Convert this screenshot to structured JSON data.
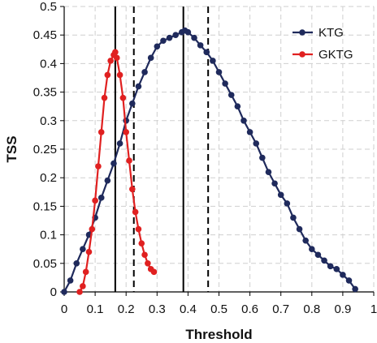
{
  "chart_data": {
    "type": "line",
    "title": "",
    "xlabel": "Threshold",
    "ylabel": "TSS",
    "xlim": [
      0,
      1
    ],
    "ylim": [
      0,
      0.5
    ],
    "xticks": [
      "0",
      "0.1",
      "0.2",
      "0.3",
      "0.4",
      "0.5",
      "0.6",
      "0.7",
      "0.8",
      "0.9",
      "1"
    ],
    "yticks": [
      "0",
      "0.05",
      "0.1",
      "0.15",
      "0.2",
      "0.25",
      "0.3",
      "0.35",
      "0.4",
      "0.45",
      "0.5"
    ],
    "grid": true,
    "legend_position": "top-right",
    "series": [
      {
        "name": "KTG",
        "color": "#1f2a5c",
        "marker": "circle",
        "x": [
          0,
          0.02,
          0.04,
          0.06,
          0.08,
          0.1,
          0.12,
          0.14,
          0.16,
          0.18,
          0.2,
          0.22,
          0.24,
          0.26,
          0.28,
          0.3,
          0.32,
          0.34,
          0.36,
          0.38,
          0.39,
          0.4,
          0.42,
          0.44,
          0.46,
          0.48,
          0.5,
          0.52,
          0.54,
          0.56,
          0.58,
          0.6,
          0.62,
          0.64,
          0.66,
          0.68,
          0.7,
          0.72,
          0.74,
          0.76,
          0.78,
          0.8,
          0.82,
          0.84,
          0.86,
          0.88,
          0.9,
          0.92,
          0.94
        ],
        "y": [
          0,
          0.02,
          0.05,
          0.075,
          0.1,
          0.13,
          0.165,
          0.195,
          0.225,
          0.26,
          0.3,
          0.33,
          0.36,
          0.385,
          0.41,
          0.43,
          0.44,
          0.445,
          0.45,
          0.455,
          0.458,
          0.455,
          0.445,
          0.432,
          0.42,
          0.405,
          0.385,
          0.365,
          0.345,
          0.325,
          0.3,
          0.28,
          0.26,
          0.235,
          0.21,
          0.19,
          0.17,
          0.155,
          0.13,
          0.11,
          0.09,
          0.075,
          0.065,
          0.055,
          0.045,
          0.04,
          0.03,
          0.02,
          0.005
        ]
      },
      {
        "name": "GKTG",
        "color": "#e02020",
        "marker": "circle",
        "x": [
          0.05,
          0.06,
          0.07,
          0.08,
          0.09,
          0.1,
          0.11,
          0.12,
          0.13,
          0.14,
          0.15,
          0.16,
          0.165,
          0.17,
          0.18,
          0.19,
          0.2,
          0.21,
          0.22,
          0.23,
          0.24,
          0.25,
          0.26,
          0.27,
          0.28,
          0.29
        ],
        "y": [
          0.0,
          0.01,
          0.035,
          0.07,
          0.11,
          0.16,
          0.22,
          0.28,
          0.34,
          0.38,
          0.405,
          0.415,
          0.42,
          0.41,
          0.38,
          0.34,
          0.28,
          0.23,
          0.18,
          0.14,
          0.11,
          0.085,
          0.065,
          0.05,
          0.04,
          0.035
        ]
      }
    ],
    "reference_lines": [
      {
        "x": 0.165,
        "style": "solid"
      },
      {
        "x": 0.225,
        "style": "dashed"
      },
      {
        "x": 0.385,
        "style": "solid"
      },
      {
        "x": 0.465,
        "style": "dashed"
      }
    ]
  }
}
